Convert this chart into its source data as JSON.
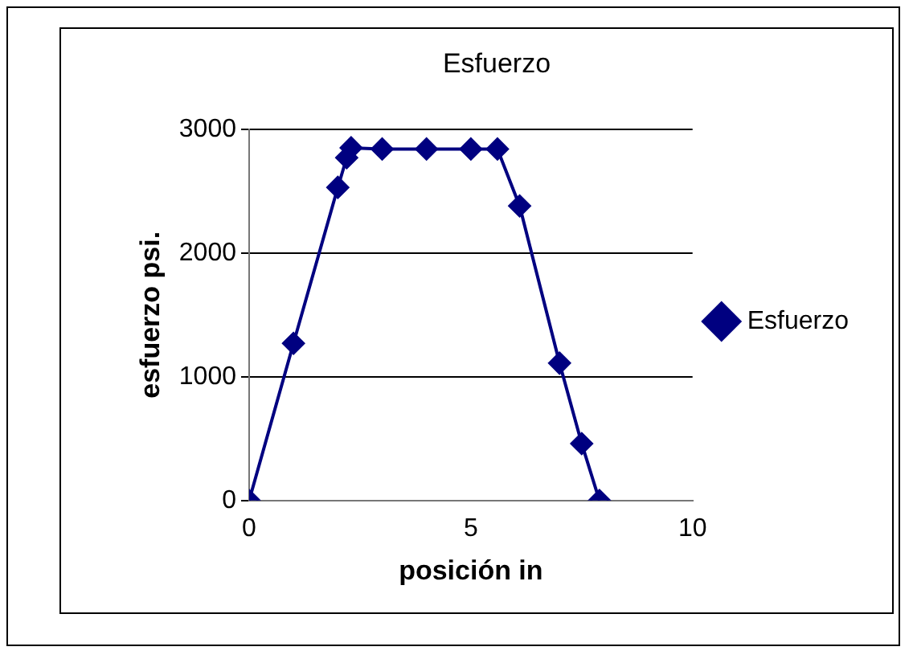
{
  "chart_data": {
    "type": "line",
    "title": "Esfuerzo",
    "xlabel": "posición in",
    "ylabel": "esfuerzo psi.",
    "xlim": [
      0,
      10
    ],
    "xticks": [
      0,
      5,
      10
    ],
    "ylim": [
      0,
      3000
    ],
    "yticks": [
      0,
      1000,
      2000,
      3000
    ],
    "grid": "y",
    "legend": "right",
    "marker": "diamond",
    "line_style": "solid",
    "series": [
      {
        "name": "Esfuerzo",
        "color": "#000080",
        "x": [
          0,
          1,
          2,
          2.2,
          2.3,
          3,
          4,
          5,
          5.6,
          6.1,
          7,
          7.5,
          7.9
        ],
        "values": [
          0,
          1270,
          2530,
          2770,
          2850,
          2840,
          2840,
          2840,
          2840,
          2380,
          1110,
          460,
          0
        ]
      }
    ]
  }
}
